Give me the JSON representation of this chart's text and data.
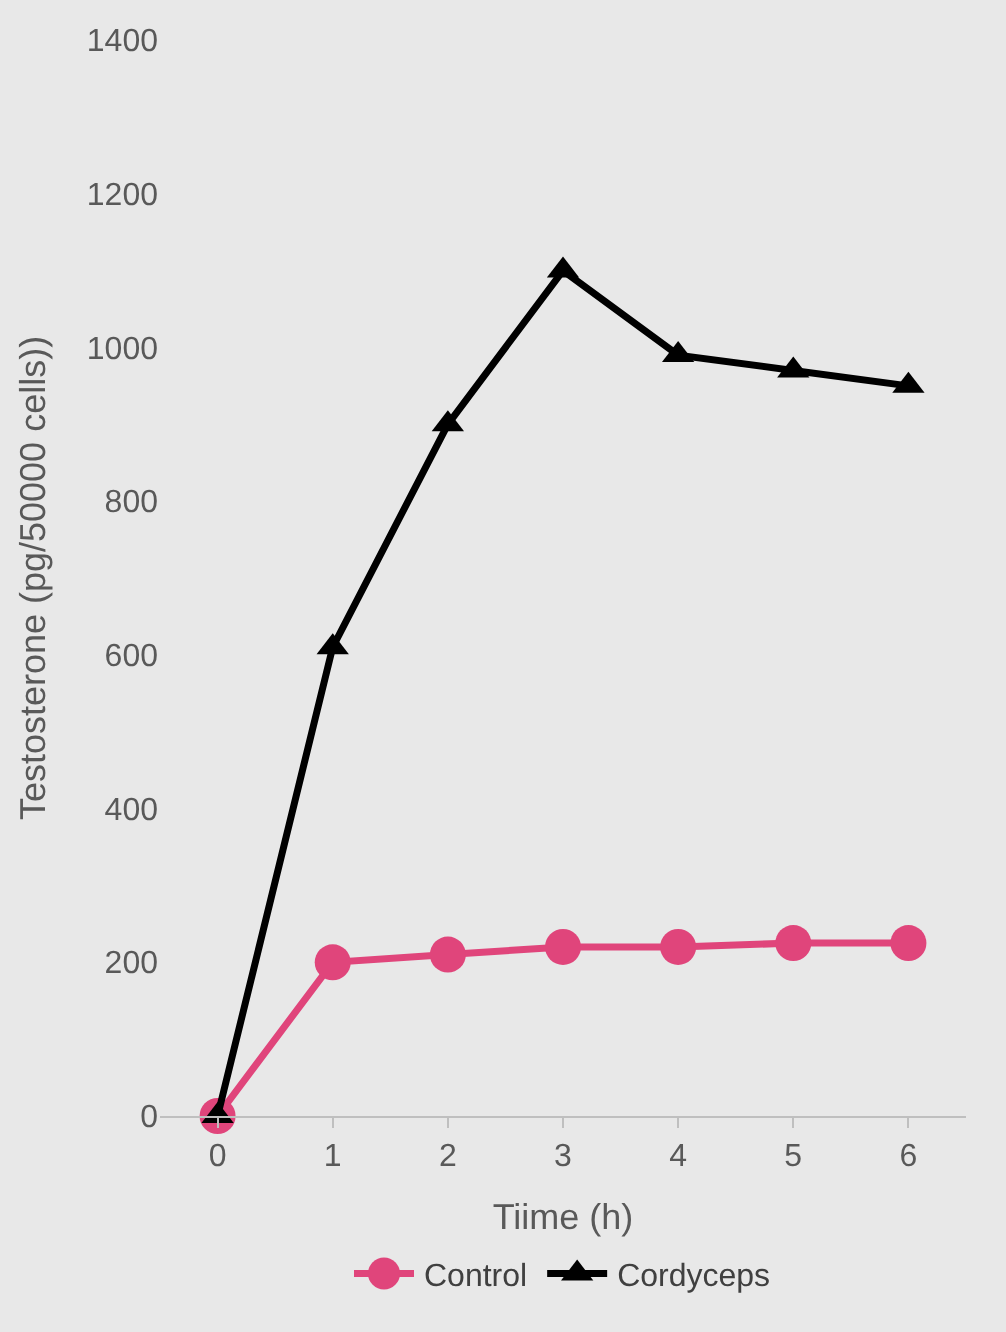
{
  "chart_data": {
    "type": "line",
    "xlabel": "Tiime (h)",
    "ylabel": "Testosterone (pg/50000 cells))",
    "categories": [
      "0",
      "1",
      "2",
      "3",
      "4",
      "5",
      "6"
    ],
    "series": [
      {
        "name": "Control",
        "color": "#e0457b",
        "marker": "circle",
        "values": [
          0,
          200,
          210,
          220,
          220,
          225,
          225
        ]
      },
      {
        "name": "Cordyceps",
        "color": "#000000",
        "marker": "triangle",
        "values": [
          0,
          610,
          900,
          1100,
          990,
          970,
          950
        ]
      }
    ],
    "ylim": [
      0,
      1400
    ],
    "yticks": [
      0,
      200,
      400,
      600,
      800,
      1000,
      1200,
      1400
    ],
    "grid": false,
    "legend": "bottom"
  }
}
